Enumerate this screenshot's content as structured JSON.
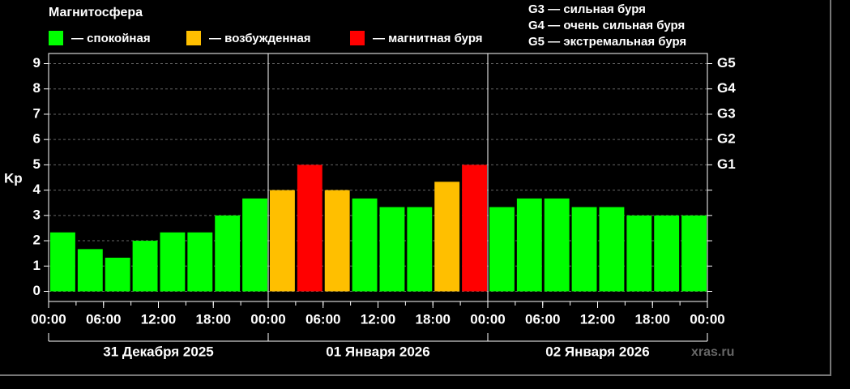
{
  "chart_data": {
    "type": "bar",
    "title": "Магнитосфера",
    "y_label": "Kp",
    "watermark": "xras.ru",
    "legend": [
      {
        "name": "— спокойная",
        "color": "#00ff00"
      },
      {
        "name": "— возбужденная",
        "color": "#ffbf00"
      },
      {
        "name": "— магнитная буря",
        "color": "#ff0000"
      }
    ],
    "storm_legend": [
      "G3 — сильная буря",
      "G4 — очень сильная буря",
      "G5 — экстремальная буря"
    ],
    "values": [
      2.33,
      1.67,
      1.33,
      2,
      2.33,
      2.33,
      3,
      3.67,
      4,
      5,
      4,
      3.67,
      3.33,
      3.33,
      4.33,
      5,
      3.33,
      3.67,
      3.67,
      3.33,
      3.33,
      3,
      3,
      3
    ],
    "colors": [
      "#00ff00",
      "#00ff00",
      "#00ff00",
      "#00ff00",
      "#00ff00",
      "#00ff00",
      "#00ff00",
      "#00ff00",
      "#ffbf00",
      "#ff0000",
      "#ffbf00",
      "#00ff00",
      "#00ff00",
      "#00ff00",
      "#ffbf00",
      "#ff0000",
      "#00ff00",
      "#00ff00",
      "#00ff00",
      "#00ff00",
      "#00ff00",
      "#00ff00",
      "#00ff00",
      "#00ff00"
    ],
    "ylim": [
      -0.4,
      9.4
    ],
    "yticks": [
      0,
      1,
      2,
      3,
      4,
      5,
      6,
      7,
      8,
      9
    ],
    "y2lim": [
      -0.4,
      9.4
    ],
    "y2ticks": [
      {
        "value": 5,
        "label": "G1"
      },
      {
        "value": 6,
        "label": "G2"
      },
      {
        "value": 7,
        "label": "G3"
      },
      {
        "value": 8,
        "label": "G4"
      },
      {
        "value": 9,
        "label": "G5"
      }
    ],
    "xlim": [
      0,
      72
    ],
    "xticks": [
      {
        "value": 0,
        "label": "00:00"
      },
      {
        "value": 6,
        "label": "06:00"
      },
      {
        "value": 12,
        "label": "12:00"
      },
      {
        "value": 18,
        "label": "18:00"
      },
      {
        "value": 24,
        "label": "00:00"
      },
      {
        "value": 30,
        "label": "06:00"
      },
      {
        "value": 36,
        "label": "12:00"
      },
      {
        "value": 42,
        "label": "18:00"
      },
      {
        "value": 48,
        "label": "00:00"
      },
      {
        "value": 54,
        "label": "06:00"
      },
      {
        "value": 60,
        "label": "12:00"
      },
      {
        "value": 66,
        "label": "18:00"
      },
      {
        "value": 72,
        "label": "00:00"
      }
    ],
    "day_labels": [
      "31 Декабря 2025",
      "01 Января 2026",
      "02 Января 2026"
    ],
    "grid": true
  }
}
